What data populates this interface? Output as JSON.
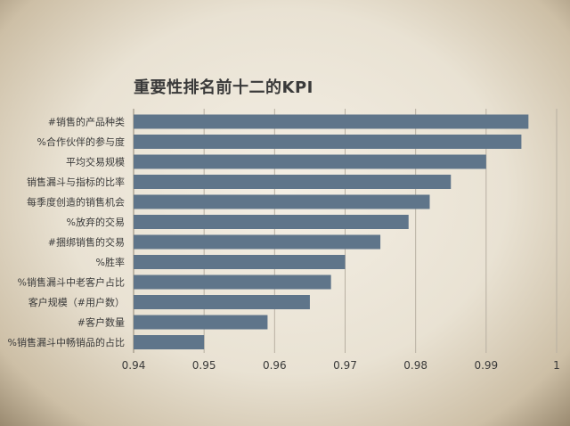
{
  "chart_data": {
    "type": "bar",
    "orientation": "horizontal",
    "title": "重要性排名前十二的KPI",
    "xlabel": "",
    "ylabel": "",
    "xlim": [
      0.94,
      1.0
    ],
    "xticks": [
      "0.94",
      "0.95",
      "0.96",
      "0.97",
      "0.98",
      "0.99",
      "1"
    ],
    "grid": "vertical",
    "legend": "none",
    "bar_color": "#5f758a",
    "categories": [
      "#销售的产品种类",
      "%合作伙伴的参与度",
      "平均交易规模",
      "销售漏斗与指标的比率",
      "每季度创造的销售机会",
      "%放弃的交易",
      "#捆绑销售的交易",
      "%胜率",
      "%销售漏斗中老客户占比",
      "客户规模（#用户数）",
      "#客户数量",
      "%销售漏斗中畅销品的占比"
    ],
    "values": [
      0.996,
      0.995,
      0.99,
      0.985,
      0.982,
      0.979,
      0.975,
      0.97,
      0.968,
      0.965,
      0.959,
      0.95
    ]
  }
}
